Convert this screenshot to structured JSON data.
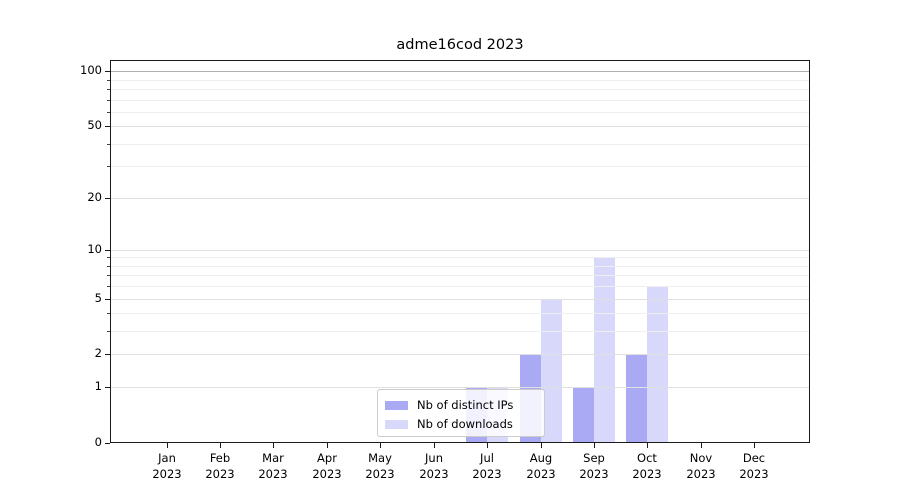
{
  "chart_data": {
    "type": "bar",
    "title": "adme16cod 2023",
    "categories": [
      "Jan 2023",
      "Feb 2023",
      "Mar 2023",
      "Apr 2023",
      "May 2023",
      "Jun 2023",
      "Jul 2023",
      "Aug 2023",
      "Sep 2023",
      "Oct 2023",
      "Nov 2023",
      "Dec 2023"
    ],
    "series": [
      {
        "name": "Nb of distinct IPs",
        "color": "#a9a9f4",
        "values": [
          0,
          0,
          0,
          0,
          0,
          0,
          1,
          2,
          1,
          2,
          0,
          0
        ]
      },
      {
        "name": "Nb of downloads",
        "color": "#d8d8fa",
        "values": [
          0,
          0,
          0,
          0,
          0,
          0,
          1,
          5,
          9,
          6,
          0,
          0
        ]
      }
    ],
    "xlabel": "",
    "ylabel": "",
    "yscale": "log10(1+x)",
    "yticks": [
      0,
      1,
      2,
      5,
      10,
      20,
      50,
      100
    ],
    "minor_yticks": [
      3,
      4,
      6,
      7,
      8,
      9,
      30,
      40,
      60,
      70,
      80,
      90
    ],
    "ylim": [
      0,
      115
    ],
    "grid": true,
    "legend_position": "lower center",
    "colors": {
      "grid_major": "#e0e0e0",
      "grid_minor": "#efefef",
      "grid_top_100": "#b0b0b0",
      "spine": "#1a1a1a",
      "text": "#000000"
    }
  }
}
